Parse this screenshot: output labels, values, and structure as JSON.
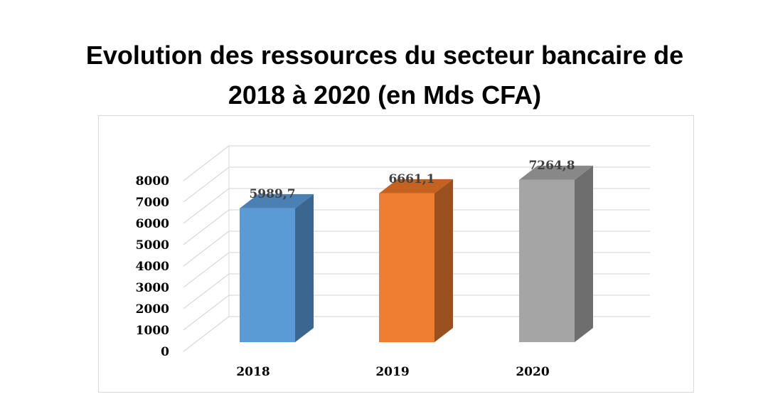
{
  "chart_data": {
    "type": "bar",
    "style": "3d-column",
    "title": "Evolution des ressources du secteur bancaire de 2018 à 2020 (en Mds CFA)",
    "title_line1": "Evolution des ressources du secteur bancaire de",
    "title_line2": "2018 à 2020 (en Mds CFA)",
    "xlabel": "",
    "ylabel": "",
    "categories": [
      "2018",
      "2019",
      "2020"
    ],
    "values": [
      5989.7,
      6661.1,
      7264.8
    ],
    "value_labels": [
      "5989,7",
      "6661,1",
      "7264,8"
    ],
    "colors": [
      "#5b9bd5",
      "#ed7d31",
      "#a5a5a5"
    ],
    "side_colors": [
      "#3a6690",
      "#9a4f1f",
      "#6e6e6e"
    ],
    "top_colors": [
      "#4a80b4",
      "#c4631f",
      "#888888"
    ],
    "ylim": [
      0,
      8000
    ],
    "yticks": [
      "0",
      "1000",
      "2000",
      "3000",
      "4000",
      "5000",
      "6000",
      "7000",
      "8000"
    ],
    "grid": true,
    "legend": "none"
  }
}
